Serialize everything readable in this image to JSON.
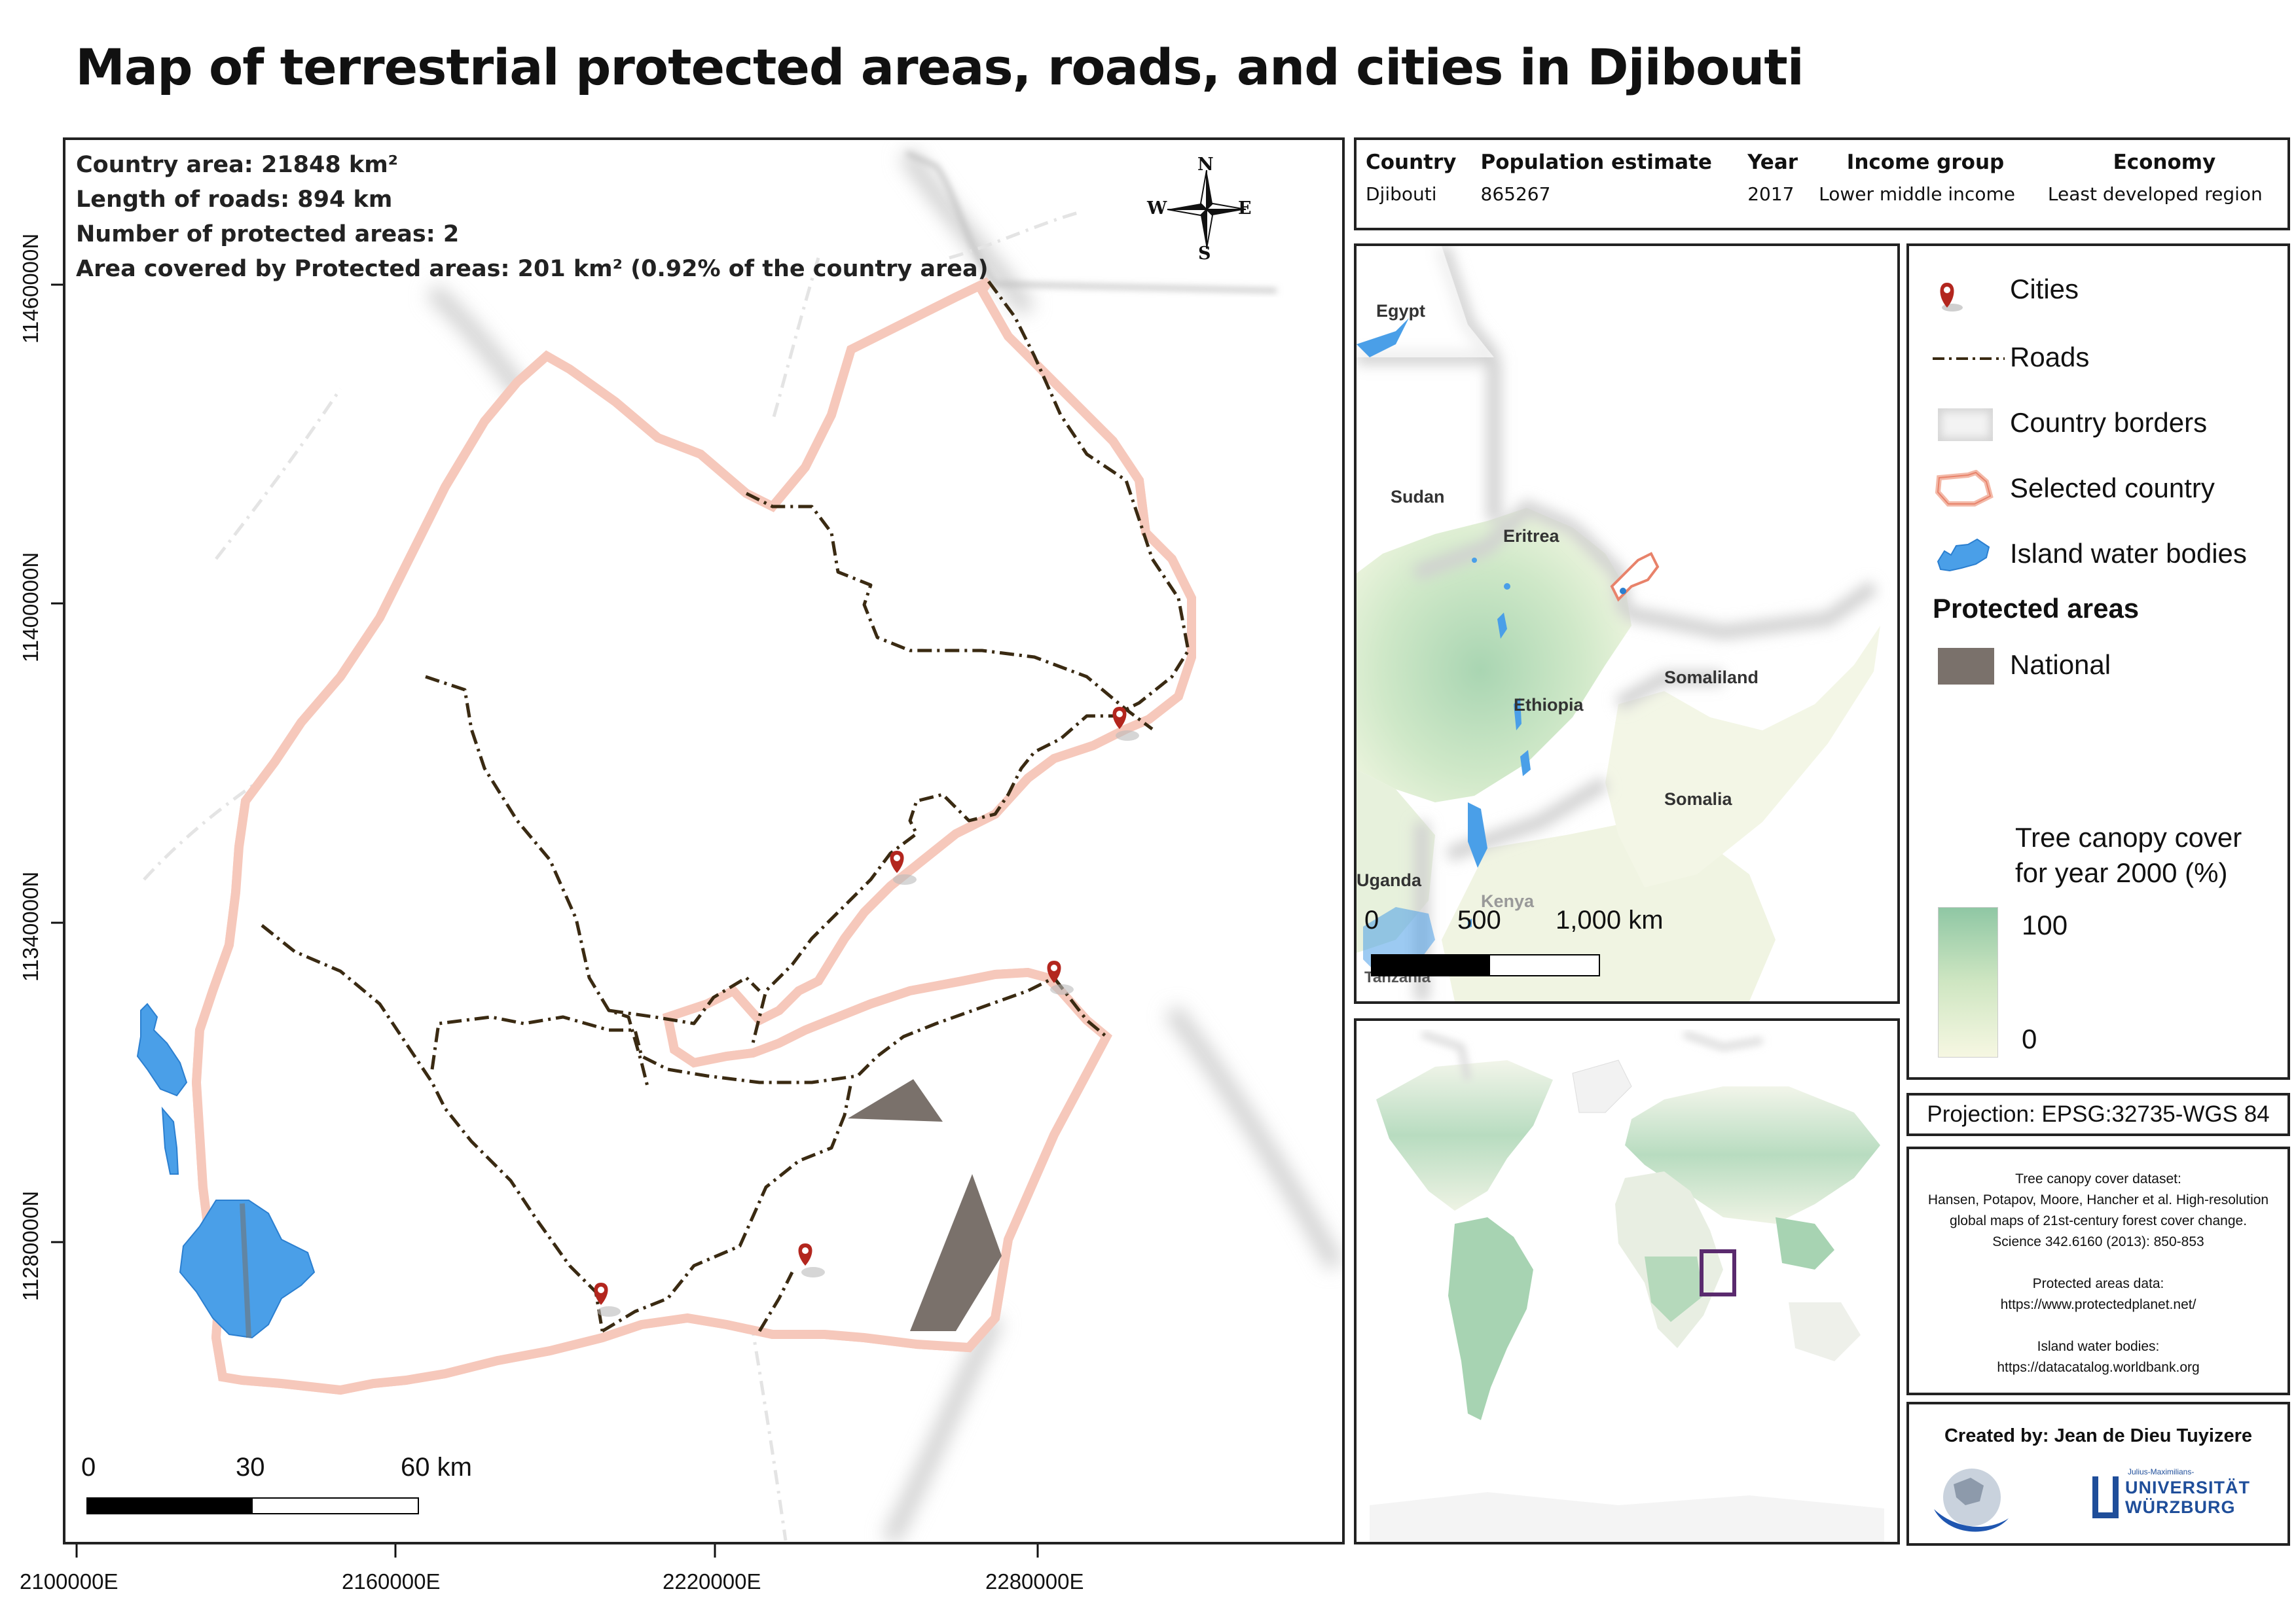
{
  "title": "Map of terrestrial protected areas, roads, and cities in Djibouti",
  "stats": {
    "country_area": "Country area: 21848 km²",
    "road_length": "Length of roads: 894 km",
    "protected_count": "Number of protected areas: 2",
    "protected_cover": "Area covered by Protected areas: 201 km² (0.92% of the country area)"
  },
  "compass": {
    "n": "N",
    "s": "S",
    "e": "E",
    "w": "W"
  },
  "scalebar_main": {
    "labels": [
      "0",
      "30",
      "60 km"
    ]
  },
  "axes": {
    "x_ticks": [
      "2100000E",
      "2160000E",
      "2220000E",
      "2280000E"
    ],
    "y_ticks": [
      "11460000N",
      "11400000N",
      "11340000N",
      "11280000N"
    ]
  },
  "info_table": {
    "headers": [
      "Country",
      "Population estimate",
      "Year",
      "Income group",
      "Economy"
    ],
    "values": [
      "Djibouti",
      "865267",
      "2017",
      "Lower middle income",
      "Least developed region"
    ]
  },
  "inset_region": {
    "labels": [
      "Egypt",
      "Sudan",
      "Eritrea",
      "Ethiopia",
      "Somaliland",
      "Somalia",
      "Uganda",
      "Kenya",
      "Tanzania"
    ],
    "scalebar": [
      "0",
      "500",
      "1,000 km"
    ]
  },
  "legend": {
    "cities": "Cities",
    "roads": "Roads",
    "country_borders": "Country borders",
    "selected_country": "Selected country",
    "island_water": "Island water bodies",
    "protected_heading": "Protected areas",
    "national": "National",
    "canopy_title_1": "Tree canopy cover",
    "canopy_title_2": "for year 2000 (%)",
    "canopy_max": "100",
    "canopy_min": "0"
  },
  "projection": "Projection: EPSG:32735-WGS 84",
  "credits": [
    "Tree canopy cover dataset:",
    "Hansen, Potapov, Moore, Hancher et al. High-resolution",
    "global maps of 21st-century forest cover change.",
    "Science 342.6160 (2013): 850-853",
    "",
    "Protected areas data:",
    "https://www.protectedplanet.net/",
    "",
    "Island water bodies:",
    "https://datacatalog.worldbank.org"
  ],
  "created_by": "Created by: Jean de Dieu Tuyizere",
  "university": {
    "small": "Julius-Maximilians-",
    "line1": "UNIVERSITÄT",
    "line2": "WÜRZBURG"
  },
  "colors": {
    "selected_country": "#e8826a",
    "road": "#3a2a12",
    "water": "#4a9fe8",
    "protected": "#7a716b",
    "city": "#b3261e",
    "canopy_high": "#8fc7a4",
    "canopy_low": "#f6f7e2",
    "inset_box": "#5a2a6e"
  }
}
